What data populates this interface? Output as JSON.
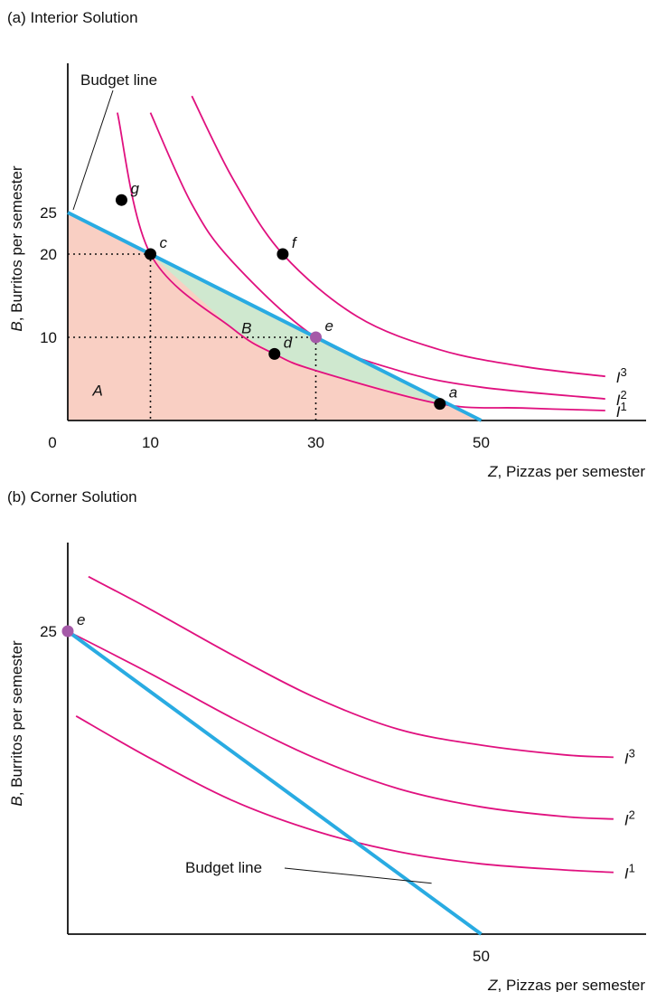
{
  "colors": {
    "budget": "#29abe2",
    "indifference": "#e0117f",
    "region_a": "#f9cfc3",
    "region_b": "#cfe8cf",
    "point": "#000000",
    "optimum": "#a55aa8",
    "axis": "#111111"
  },
  "chart_data": [
    {
      "type": "line",
      "title": "(a) Interior Solution",
      "xlabel_var": "Z",
      "xlabel_text": ", Pizzas per semester",
      "ylabel_var": "B",
      "ylabel_text": ", Burritos per semester",
      "xlim": [
        0,
        70
      ],
      "ylim": [
        0,
        45
      ],
      "x_ticks": [
        0,
        10,
        30,
        50
      ],
      "y_ticks": [
        10,
        20,
        25
      ],
      "budget_line": {
        "label": "Budget line",
        "points": [
          [
            0,
            25
          ],
          [
            50,
            0
          ]
        ]
      },
      "indifference_curves": [
        {
          "name": "I",
          "sup": "1",
          "points": [
            [
              6,
              37
            ],
            [
              10,
              20
            ],
            [
              20,
              11
            ],
            [
              25,
              8
            ],
            [
              30,
              6
            ],
            [
              45,
              2
            ],
            [
              55,
              1.5
            ],
            [
              65,
              1.2
            ]
          ]
        },
        {
          "name": "I",
          "sup": "2",
          "points": [
            [
              10,
              37
            ],
            [
              15,
              26
            ],
            [
              20,
              19
            ],
            [
              30,
              10
            ],
            [
              40,
              6
            ],
            [
              50,
              4
            ],
            [
              65,
              2.6
            ]
          ]
        },
        {
          "name": "I",
          "sup": "3",
          "points": [
            [
              15,
              39
            ],
            [
              20,
              29
            ],
            [
              26,
              20
            ],
            [
              35,
              12.5
            ],
            [
              45,
              8.5
            ],
            [
              55,
              6.5
            ],
            [
              65,
              5.3
            ]
          ]
        }
      ],
      "points": [
        {
          "label": "a",
          "x": 45,
          "y": 2,
          "kind": "bundle"
        },
        {
          "label": "c",
          "x": 10,
          "y": 20,
          "kind": "bundle"
        },
        {
          "label": "d",
          "x": 25,
          "y": 8,
          "kind": "bundle"
        },
        {
          "label": "e",
          "x": 30,
          "y": 10,
          "kind": "optimum"
        },
        {
          "label": "f",
          "x": 26,
          "y": 20,
          "kind": "bundle"
        },
        {
          "label": "g",
          "x": 6.5,
          "y": 26.5,
          "kind": "bundle"
        }
      ],
      "regions": [
        {
          "label": "A",
          "x": 3,
          "y": 3
        },
        {
          "label": "B",
          "x": 21,
          "y": 10.5
        }
      ],
      "guides": [
        {
          "x": 10,
          "y": 20
        },
        {
          "x": 30,
          "y": 10
        }
      ]
    },
    {
      "type": "line",
      "title": "(b) Corner Solution",
      "xlabel_var": "Z",
      "xlabel_text": ", Pizzas per semester",
      "ylabel_var": "B",
      "ylabel_text": ", Burritos per semester",
      "xlim": [
        0,
        70
      ],
      "ylim": [
        0,
        40
      ],
      "x_ticks": [
        50
      ],
      "y_ticks": [
        25
      ],
      "budget_line": {
        "label": "Budget line",
        "points": [
          [
            0,
            25
          ],
          [
            50,
            0
          ]
        ]
      },
      "indifference_curves": [
        {
          "name": "I",
          "sup": "1",
          "points": [
            [
              1,
              18
            ],
            [
              10,
              14.5
            ],
            [
              20,
              11
            ],
            [
              30,
              8.5
            ],
            [
              40,
              6.8
            ],
            [
              50,
              5.8
            ],
            [
              60,
              5.3
            ],
            [
              66,
              5.1
            ]
          ]
        },
        {
          "name": "I",
          "sup": "2",
          "points": [
            [
              0,
              25
            ],
            [
              10,
              21.5
            ],
            [
              20,
              17.8
            ],
            [
              30,
              14.5
            ],
            [
              40,
              12
            ],
            [
              50,
              10.5
            ],
            [
              60,
              9.7
            ],
            [
              66,
              9.5
            ]
          ]
        },
        {
          "name": "I",
          "sup": "3",
          "points": [
            [
              2.5,
              29.5
            ],
            [
              10,
              26.8
            ],
            [
              20,
              23
            ],
            [
              30,
              19.5
            ],
            [
              40,
              16.9
            ],
            [
              50,
              15.6
            ],
            [
              60,
              14.8
            ],
            [
              66,
              14.6
            ]
          ]
        }
      ],
      "points": [
        {
          "label": "e",
          "x": 0,
          "y": 25,
          "kind": "optimum"
        }
      ]
    }
  ]
}
